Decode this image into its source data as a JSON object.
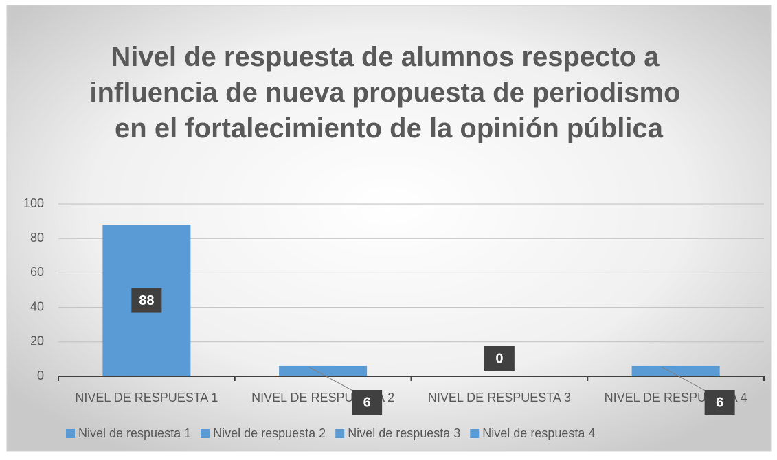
{
  "chart_data": {
    "type": "bar",
    "title": "Nivel de respuesta de alumnos respecto a influencia de nueva propuesta de periodismo en el fortalecimiento de la opinión pública",
    "categories": [
      "NIVEL DE RESPUESTA 1",
      "NIVEL DE RESPUESTA 2",
      "NIVEL DE RESPUESTA 3",
      "NIVEL DE RESPUESTA 4"
    ],
    "values": [
      88,
      6,
      0,
      6
    ],
    "legend": [
      "Nivel de respuesta 1",
      "Nivel de respuesta 2",
      "Nivel de respuesta 3",
      "Nivel de respuesta 4"
    ],
    "color": "#5b9bd5",
    "ylim": [
      0,
      100
    ],
    "yticks": [
      0,
      20,
      40,
      60,
      80,
      100
    ],
    "grid": true
  }
}
